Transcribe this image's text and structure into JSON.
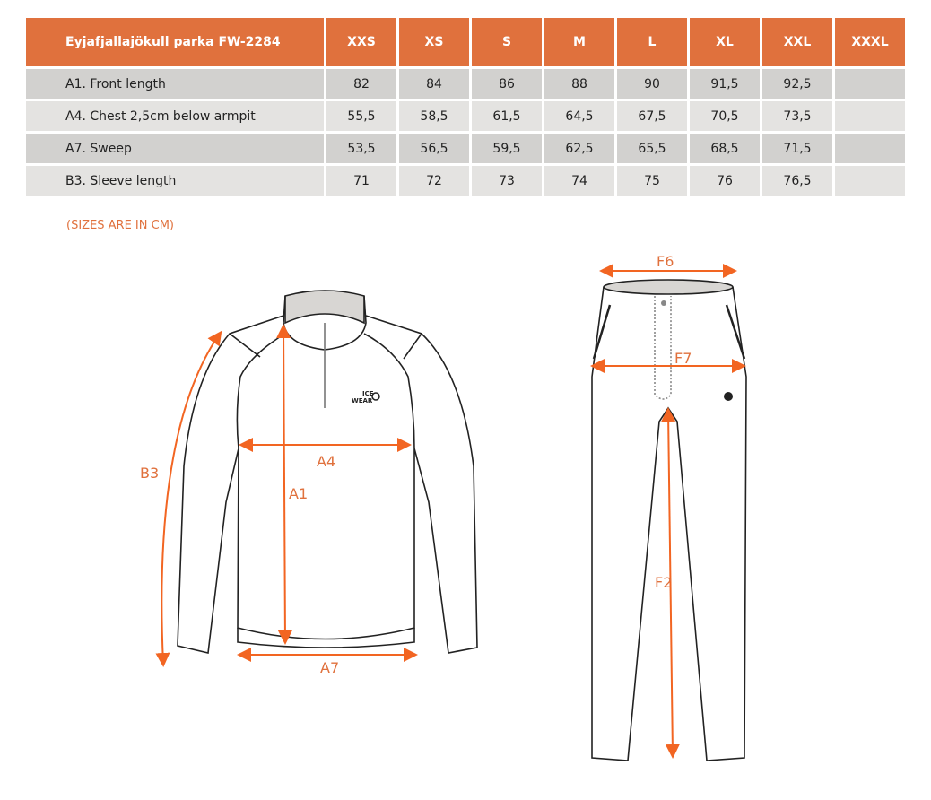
{
  "table": {
    "title": "Eyjafjallajökull parka FW-2284",
    "sizes": [
      "XXS",
      "XS",
      "S",
      "M",
      "L",
      "XL",
      "XXL",
      "XXXL"
    ],
    "rows": [
      {
        "label": "A1. Front length",
        "values": [
          "82",
          "84",
          "86",
          "88",
          "90",
          "91,5",
          "92,5",
          ""
        ]
      },
      {
        "label": "A4. Chest 2,5cm below armpit",
        "values": [
          "55,5",
          "58,5",
          "61,5",
          "64,5",
          "67,5",
          "70,5",
          "73,5",
          ""
        ]
      },
      {
        "label": "A7. Sweep",
        "values": [
          "53,5",
          "56,5",
          "59,5",
          "62,5",
          "65,5",
          "68,5",
          "71,5",
          ""
        ]
      },
      {
        "label": "B3. Sleeve length",
        "values": [
          "71",
          "72",
          "73",
          "74",
          "75",
          "76",
          "76,5",
          ""
        ]
      }
    ]
  },
  "note": "(SIZES ARE IN CM)",
  "diagram": {
    "labels": {
      "a1": "A1",
      "a4": "A4",
      "a7": "A7",
      "b3": "B3",
      "f2": "F2",
      "f6": "F6",
      "f7": "F7"
    },
    "logo": [
      "ICE",
      "WEAR"
    ],
    "accent": "#e0713d"
  }
}
